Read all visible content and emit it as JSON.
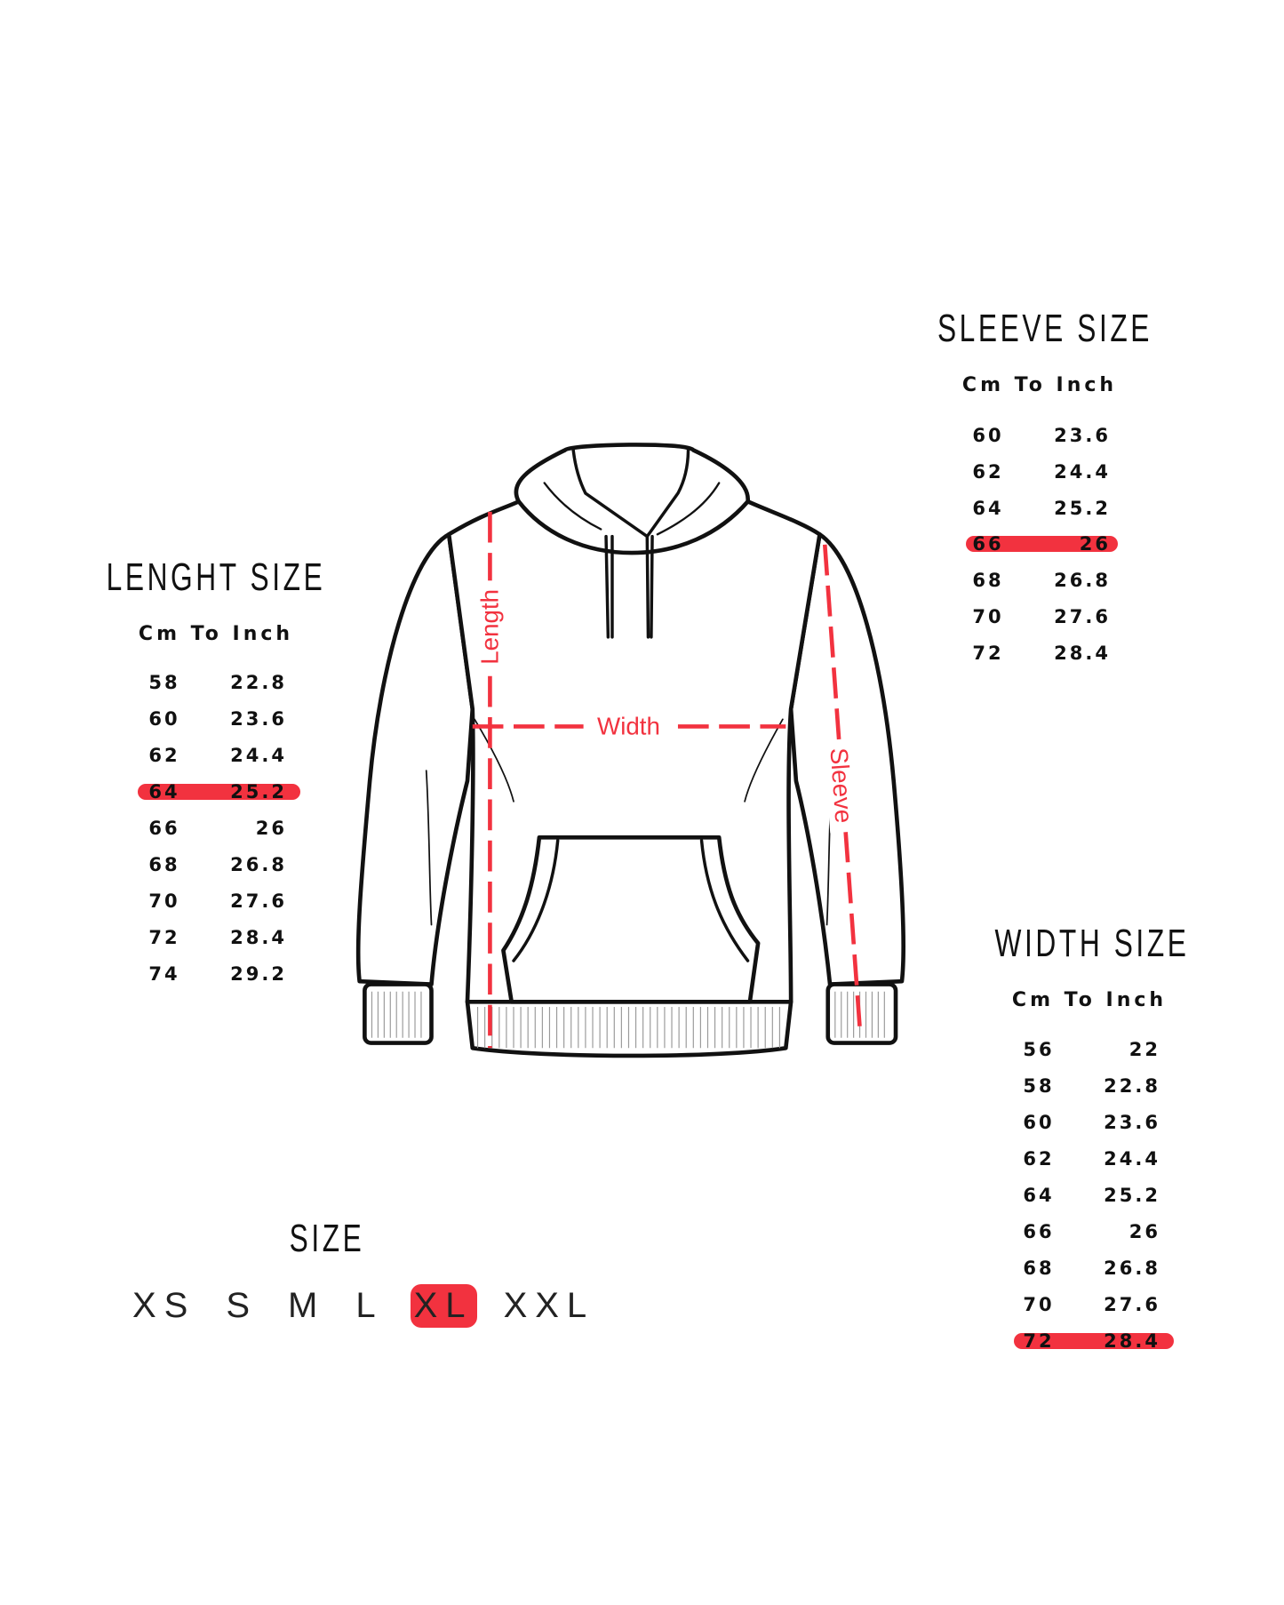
{
  "colors": {
    "highlight": "#f2323f",
    "ink": "#111111"
  },
  "sleeve": {
    "title": "SLEEVE SIZE",
    "subtitle": "Cm To Inch",
    "highlighted_row": 3,
    "rows": [
      {
        "cm": "60",
        "inch": "23.6"
      },
      {
        "cm": "62",
        "inch": "24.4"
      },
      {
        "cm": "64",
        "inch": "25.2"
      },
      {
        "cm": "66",
        "inch": "26"
      },
      {
        "cm": "68",
        "inch": "26.8"
      },
      {
        "cm": "70",
        "inch": "27.6"
      },
      {
        "cm": "72",
        "inch": "28.4"
      }
    ]
  },
  "length": {
    "title": "LENGHT SIZE",
    "subtitle": "Cm To Inch",
    "highlighted_row": 3,
    "rows": [
      {
        "cm": "58",
        "inch": "22.8"
      },
      {
        "cm": "60",
        "inch": "23.6"
      },
      {
        "cm": "62",
        "inch": "24.4"
      },
      {
        "cm": "64",
        "inch": "25.2"
      },
      {
        "cm": "66",
        "inch": "26"
      },
      {
        "cm": "68",
        "inch": "26.8"
      },
      {
        "cm": "70",
        "inch": "27.6"
      },
      {
        "cm": "72",
        "inch": "28.4"
      },
      {
        "cm": "74",
        "inch": "29.2"
      }
    ]
  },
  "width": {
    "title": "WIDTH SIZE",
    "subtitle": "Cm To Inch",
    "highlighted_row": 8,
    "rows": [
      {
        "cm": "56",
        "inch": "22"
      },
      {
        "cm": "58",
        "inch": "22.8"
      },
      {
        "cm": "60",
        "inch": "23.6"
      },
      {
        "cm": "62",
        "inch": "24.4"
      },
      {
        "cm": "64",
        "inch": "25.2"
      },
      {
        "cm": "66",
        "inch": "26"
      },
      {
        "cm": "68",
        "inch": "26.8"
      },
      {
        "cm": "70",
        "inch": "27.6"
      },
      {
        "cm": "72",
        "inch": "28.4"
      }
    ]
  },
  "size": {
    "title": "SIZE",
    "options": [
      "XS",
      "S",
      "M",
      "L",
      "XL",
      "XXL"
    ],
    "selected": "XL"
  },
  "hoodie": {
    "length_label": "Length",
    "width_label": "Width",
    "sleeve_label": "Sleeve"
  }
}
